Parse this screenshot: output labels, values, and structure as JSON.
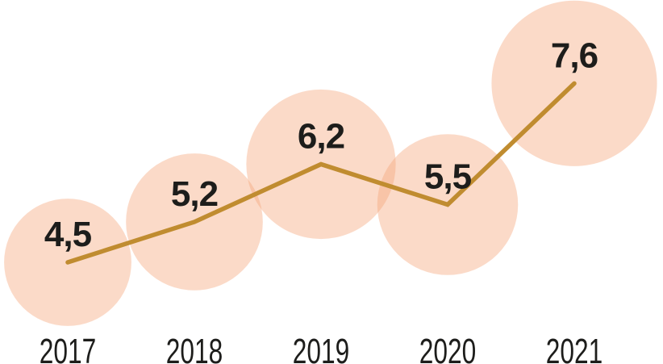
{
  "chart_data": {
    "type": "line",
    "subtype": "bubble-line",
    "title": "",
    "xlabel": "",
    "ylabel": "",
    "categories": [
      "2017",
      "2018",
      "2019",
      "2020",
      "2021"
    ],
    "values": [
      4.5,
      5.2,
      6.2,
      5.5,
      7.6
    ],
    "value_labels": [
      "4,5",
      "5,2",
      "6,2",
      "5,5",
      "7,6"
    ],
    "decimal_separator": ",",
    "series": [
      {
        "name": "value-by-year",
        "values": [
          4.5,
          5.2,
          6.2,
          5.5,
          7.6
        ]
      }
    ],
    "ylim": [
      4.0,
      8.2
    ],
    "grid": false,
    "legend": false,
    "axes_visible": false,
    "bubble_area_proportional_to_value": true,
    "colors": {
      "bubble_fill": "#F4A276",
      "bubble_opacity": 0.4,
      "line": "#C08C30",
      "value_text": "#1D1D1B",
      "axis_text": "#1D1D1B",
      "background": "#FFFFFF"
    }
  }
}
